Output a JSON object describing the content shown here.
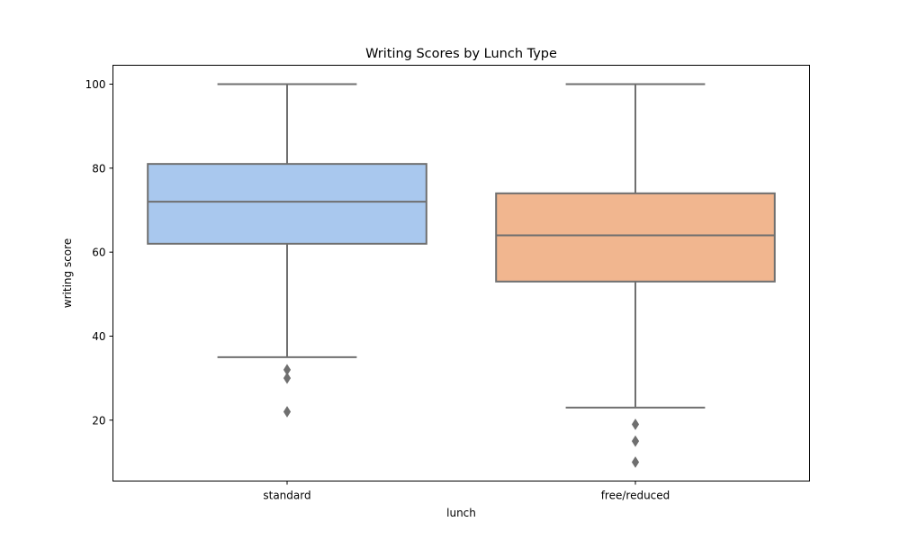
{
  "chart_data": {
    "type": "box",
    "title": "Writing Scores by Lunch Type",
    "xlabel": "lunch",
    "ylabel": "writing score",
    "ylim": [
      5.5,
      104.5
    ],
    "yticks": [
      20,
      40,
      60,
      80,
      100
    ],
    "grid": false,
    "legend": "none",
    "categories": [
      "standard",
      "free/reduced"
    ],
    "boxes": [
      {
        "category": "standard",
        "color": "#a9c8ee",
        "whisker_low": 35,
        "q1": 62,
        "median": 72,
        "q3": 81,
        "whisker_high": 100,
        "outliers": [
          32,
          30,
          22
        ]
      },
      {
        "category": "free/reduced",
        "color": "#f1b68f",
        "whisker_low": 23,
        "q1": 53,
        "median": 64,
        "q3": 74,
        "whisker_high": 100,
        "outliers": [
          19,
          15,
          10
        ]
      }
    ],
    "line_color": "#6f6f6f"
  }
}
